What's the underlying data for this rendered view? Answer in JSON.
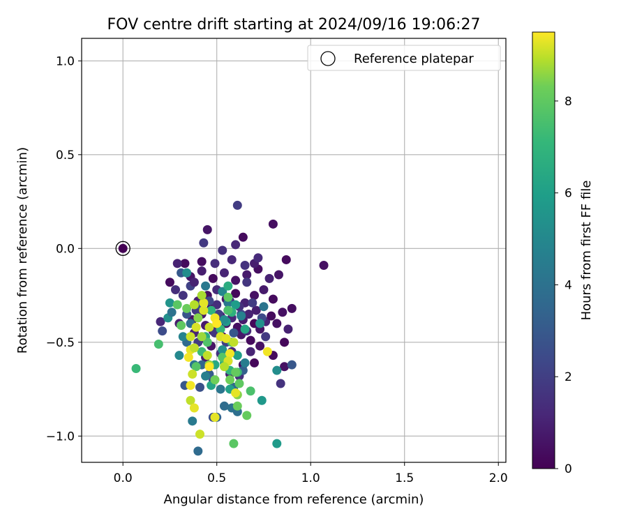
{
  "chart_data": {
    "type": "scatter",
    "title": "FOV centre drift starting at 2024/09/16 19:06:27",
    "xlabel": "Angular distance from reference (arcmin)",
    "ylabel": "Rotation from reference (arcmin)",
    "xlim": [
      -0.22,
      2.04
    ],
    "ylim": [
      -1.14,
      1.12
    ],
    "xticks": [
      0.0,
      0.5,
      1.0,
      1.5,
      2.0
    ],
    "xtick_labels": [
      "0.0",
      "0.5",
      "1.0",
      "1.5",
      "2.0"
    ],
    "yticks": [
      1.0,
      0.5,
      0.0,
      -0.5,
      -1.0
    ],
    "ytick_labels": [
      "1.0",
      "0.5",
      "0.0",
      "−0.5",
      "−1.0"
    ],
    "grid": true,
    "colormap": "viridis",
    "colorbar": {
      "label": "Hours from first FF file",
      "range": [
        0,
        9.5
      ],
      "ticks": [
        0,
        2,
        4,
        6,
        8
      ],
      "tick_labels": [
        "0",
        "2",
        "4",
        "6",
        "8"
      ]
    },
    "legend": {
      "placement": "top-right",
      "entries": [
        "Reference platepar"
      ]
    },
    "reference_point": {
      "x": 0.0,
      "y": 0.0,
      "c": 0.0
    },
    "points": [
      [
        0.37,
        -0.38,
        0.5
      ],
      [
        0.42,
        -0.35,
        0.7
      ],
      [
        0.47,
        -0.32,
        0.3
      ],
      [
        0.52,
        -0.36,
        0.9
      ],
      [
        0.55,
        -0.4,
        0.6
      ],
      [
        0.58,
        -0.37,
        1.2
      ],
      [
        0.61,
        -0.42,
        0.4
      ],
      [
        0.64,
        -0.38,
        0.8
      ],
      [
        0.67,
        -0.35,
        1.0
      ],
      [
        0.7,
        -0.4,
        0.2
      ],
      [
        0.73,
        -0.43,
        0.6
      ],
      [
        0.76,
        -0.39,
        1.1
      ],
      [
        0.79,
        -0.36,
        0.3
      ],
      [
        0.82,
        -0.4,
        0.5
      ],
      [
        0.4,
        -0.28,
        0.9
      ],
      [
        0.45,
        -0.25,
        0.4
      ],
      [
        0.5,
        -0.22,
        1.3
      ],
      [
        0.55,
        -0.27,
        0.7
      ],
      [
        0.6,
        -0.24,
        0.2
      ],
      [
        0.65,
        -0.29,
        1.0
      ],
      [
        0.7,
        -0.25,
        0.5
      ],
      [
        0.75,
        -0.22,
        0.8
      ],
      [
        0.8,
        -0.27,
        0.3
      ],
      [
        0.38,
        -0.45,
        1.1
      ],
      [
        0.43,
        -0.48,
        0.6
      ],
      [
        0.48,
        -0.44,
        0.9
      ],
      [
        0.53,
        -0.47,
        0.4
      ],
      [
        0.58,
        -0.5,
        1.2
      ],
      [
        0.63,
        -0.46,
        0.7
      ],
      [
        0.68,
        -0.49,
        0.3
      ],
      [
        0.73,
        -0.52,
        0.5
      ],
      [
        0.36,
        -0.15,
        0.6
      ],
      [
        0.42,
        -0.12,
        0.9
      ],
      [
        0.48,
        -0.16,
        0.3
      ],
      [
        0.54,
        -0.13,
        1.1
      ],
      [
        0.6,
        -0.17,
        0.5
      ],
      [
        0.66,
        -0.14,
        0.8
      ],
      [
        0.72,
        -0.11,
        0.4
      ],
      [
        0.78,
        -0.16,
        1.0
      ],
      [
        0.5,
        -0.3,
        1.4
      ],
      [
        0.56,
        -0.33,
        0.2
      ],
      [
        0.62,
        -0.31,
        1.5
      ],
      [
        0.44,
        -0.41,
        0.8
      ],
      [
        0.66,
        -0.44,
        1.3
      ],
      [
        0.71,
        -0.33,
        0.9
      ],
      [
        0.33,
        -0.08,
        0.3
      ],
      [
        0.3,
        -0.4,
        0.9
      ],
      [
        0.28,
        -0.22,
        1.4
      ],
      [
        0.85,
        -0.34,
        0.5
      ],
      [
        0.88,
        -0.43,
        1.0
      ],
      [
        0.86,
        -0.5,
        0.2
      ],
      [
        0.9,
        -0.32,
        0.4
      ],
      [
        0.83,
        -0.14,
        0.6
      ],
      [
        0.87,
        -0.06,
        0.3
      ],
      [
        1.07,
        -0.09,
        0.5
      ],
      [
        0.8,
        0.13,
        0.4
      ],
      [
        0.64,
        0.06,
        0.3
      ],
      [
        0.6,
        0.02,
        1.2
      ],
      [
        0.53,
        -0.01,
        1.5
      ],
      [
        0.45,
        0.1,
        0.6
      ],
      [
        0.43,
        0.03,
        1.8
      ],
      [
        0.61,
        0.23,
        1.9
      ],
      [
        0.42,
        -0.07,
        0.4
      ],
      [
        0.25,
        -0.18,
        0.3
      ],
      [
        0.29,
        -0.08,
        1.0
      ],
      [
        0.2,
        -0.39,
        1.2
      ],
      [
        0.21,
        -0.44,
        2.5
      ],
      [
        0.8,
        -0.57,
        0.3
      ],
      [
        0.86,
        -0.63,
        0.5
      ],
      [
        0.84,
        -0.72,
        1.6
      ],
      [
        0.9,
        -0.62,
        2.9
      ],
      [
        0.52,
        -0.56,
        1.6
      ],
      [
        0.58,
        -0.55,
        1.2
      ],
      [
        0.64,
        -0.62,
        0.4
      ],
      [
        0.7,
        -0.61,
        0.2
      ],
      [
        0.68,
        -0.55,
        1.1
      ],
      [
        0.47,
        -0.52,
        0.6
      ],
      [
        0.4,
        -0.5,
        1.9
      ],
      [
        0.44,
        -0.58,
        0.8
      ],
      [
        0.62,
        -0.68,
        1.5
      ],
      [
        0.57,
        -0.67,
        0.9
      ],
      [
        0.32,
        -0.25,
        1.6
      ],
      [
        0.36,
        -0.2,
        2.1
      ],
      [
        0.39,
        -0.33,
        1.8
      ],
      [
        0.46,
        -0.28,
        2.3
      ],
      [
        0.51,
        -0.35,
        2.0
      ],
      [
        0.57,
        -0.28,
        1.7
      ],
      [
        0.63,
        -0.35,
        2.2
      ],
      [
        0.69,
        -0.29,
        1.9
      ],
      [
        0.74,
        -0.37,
        2.4
      ],
      [
        0.49,
        -0.45,
        1.7
      ],
      [
        0.55,
        -0.5,
        2.1
      ],
      [
        0.41,
        -0.3,
        2.6
      ],
      [
        0.34,
        -0.35,
        2.8
      ],
      [
        0.59,
        -0.45,
        2.9
      ],
      [
        0.76,
        -0.47,
        1.8
      ],
      [
        0.66,
        -0.18,
        1.7
      ],
      [
        0.7,
        -0.08,
        0.9
      ],
      [
        0.72,
        -0.05,
        1.3
      ],
      [
        0.65,
        -0.09,
        1.6
      ],
      [
        0.58,
        -0.06,
        1.2
      ],
      [
        0.49,
        -0.08,
        1.4
      ],
      [
        0.38,
        -0.18,
        1.0
      ],
      [
        0.48,
        -0.7,
        2.4
      ],
      [
        0.41,
        -0.74,
        2.7
      ],
      [
        0.46,
        -0.67,
        3.1
      ],
      [
        0.42,
        -0.62,
        3.5
      ],
      [
        0.48,
        -0.9,
        2.6
      ],
      [
        0.5,
        -0.9,
        3.4
      ],
      [
        0.54,
        -0.84,
        3.8
      ],
      [
        0.58,
        -0.85,
        4.0
      ],
      [
        0.61,
        -0.87,
        3.9
      ],
      [
        0.59,
        -0.74,
        3.6
      ],
      [
        0.52,
        -0.75,
        4.2
      ],
      [
        0.4,
        -1.08,
        3.7
      ],
      [
        0.37,
        -0.92,
        4.4
      ],
      [
        0.44,
        -0.68,
        4.6
      ],
      [
        0.33,
        -0.73,
        2.9
      ],
      [
        0.38,
        -0.62,
        4.1
      ],
      [
        0.34,
        -0.5,
        3.7
      ],
      [
        0.36,
        -0.4,
        3.9
      ],
      [
        0.3,
        -0.57,
        5.0
      ],
      [
        0.32,
        -0.47,
        4.8
      ],
      [
        0.24,
        -0.37,
        5.3
      ],
      [
        0.25,
        -0.29,
        5.5
      ],
      [
        0.26,
        -0.34,
        4.0
      ],
      [
        0.31,
        -0.13,
        3.0
      ],
      [
        0.34,
        -0.13,
        5.2
      ],
      [
        0.44,
        -0.2,
        4.3
      ],
      [
        0.53,
        -0.23,
        5.0
      ],
      [
        0.56,
        -0.29,
        4.2
      ],
      [
        0.63,
        -0.36,
        4.7
      ],
      [
        0.64,
        -0.65,
        3.3
      ],
      [
        0.65,
        -0.61,
        4.5
      ],
      [
        0.53,
        -0.54,
        5.4
      ],
      [
        0.56,
        -0.6,
        5.6
      ],
      [
        0.61,
        -0.57,
        6.0
      ],
      [
        0.55,
        -0.39,
        5.8
      ],
      [
        0.6,
        -0.3,
        5.9
      ],
      [
        0.65,
        -0.43,
        6.3
      ],
      [
        0.73,
        -0.4,
        5.4
      ],
      [
        0.75,
        -0.31,
        4.1
      ],
      [
        0.82,
        -0.65,
        5.2
      ],
      [
        0.82,
        -1.04,
        5.8
      ],
      [
        0.74,
        -0.81,
        5.7
      ],
      [
        0.57,
        -0.75,
        6.1
      ],
      [
        0.47,
        -0.73,
        6.2
      ],
      [
        0.49,
        -0.62,
        6.4
      ],
      [
        0.54,
        -0.61,
        6.6
      ],
      [
        0.57,
        -0.65,
        7.0
      ],
      [
        0.61,
        -0.66,
        7.2
      ],
      [
        0.56,
        -0.2,
        6.6
      ],
      [
        0.58,
        -0.34,
        6.8
      ],
      [
        0.54,
        -0.38,
        5.2
      ],
      [
        0.52,
        -0.43,
        7.1
      ],
      [
        0.47,
        -0.33,
        6.9
      ],
      [
        0.44,
        -0.47,
        6.5
      ],
      [
        0.42,
        -0.55,
        7.3
      ],
      [
        0.39,
        -0.63,
        7.8
      ],
      [
        0.29,
        -0.3,
        7.9
      ],
      [
        0.34,
        -0.32,
        8.2
      ],
      [
        0.31,
        -0.41,
        8.0
      ],
      [
        0.19,
        -0.51,
        7.5
      ],
      [
        0.07,
        -0.64,
        7.2
      ],
      [
        0.45,
        -0.5,
        7.7
      ],
      [
        0.53,
        -0.58,
        7.8
      ],
      [
        0.58,
        -0.5,
        7.4
      ],
      [
        0.56,
        -0.33,
        7.6
      ],
      [
        0.56,
        -0.26,
        8.0
      ],
      [
        0.6,
        -0.66,
        8.1
      ],
      [
        0.62,
        -0.72,
        8.0
      ],
      [
        0.57,
        -0.7,
        8.3
      ],
      [
        0.61,
        -0.78,
        8.5
      ],
      [
        0.61,
        -0.84,
        8.2
      ],
      [
        0.68,
        -0.76,
        7.6
      ],
      [
        0.66,
        -0.89,
        8.1
      ],
      [
        0.59,
        -1.04,
        7.9
      ],
      [
        0.49,
        -0.7,
        8.3
      ],
      [
        0.46,
        -0.62,
        8.6
      ],
      [
        0.45,
        -0.57,
        9.0
      ],
      [
        0.42,
        -0.47,
        8.7
      ],
      [
        0.4,
        -0.37,
        8.5
      ],
      [
        0.38,
        -0.3,
        8.9
      ],
      [
        0.39,
        -0.42,
        9.2
      ],
      [
        0.36,
        -0.47,
        9.1
      ],
      [
        0.36,
        -0.54,
        9.3
      ],
      [
        0.35,
        -0.58,
        9.4
      ],
      [
        0.38,
        -0.53,
        9.0
      ],
      [
        0.37,
        -0.67,
        9.1
      ],
      [
        0.36,
        -0.81,
        9.0
      ],
      [
        0.38,
        -0.85,
        9.3
      ],
      [
        0.36,
        -0.73,
        9.4
      ],
      [
        0.43,
        -0.33,
        9.2
      ],
      [
        0.43,
        -0.29,
        9.3
      ],
      [
        0.42,
        -0.25,
        8.8
      ],
      [
        0.46,
        -0.42,
        9.1
      ],
      [
        0.49,
        -0.37,
        9.4
      ],
      [
        0.5,
        -0.4,
        9.5
      ],
      [
        0.52,
        -0.47,
        9.2
      ],
      [
        0.55,
        -0.48,
        9.3
      ],
      [
        0.57,
        -0.56,
        9.4
      ],
      [
        0.59,
        -0.5,
        9.0
      ],
      [
        0.56,
        -0.6,
        9.2
      ],
      [
        0.54,
        -0.63,
        8.9
      ],
      [
        0.46,
        -0.63,
        9.5
      ],
      [
        0.49,
        -0.9,
        9.3
      ],
      [
        0.41,
        -0.99,
        9.1
      ],
      [
        0.77,
        -0.55,
        9.4
      ],
      [
        0.6,
        -0.77,
        9.3
      ]
    ]
  }
}
